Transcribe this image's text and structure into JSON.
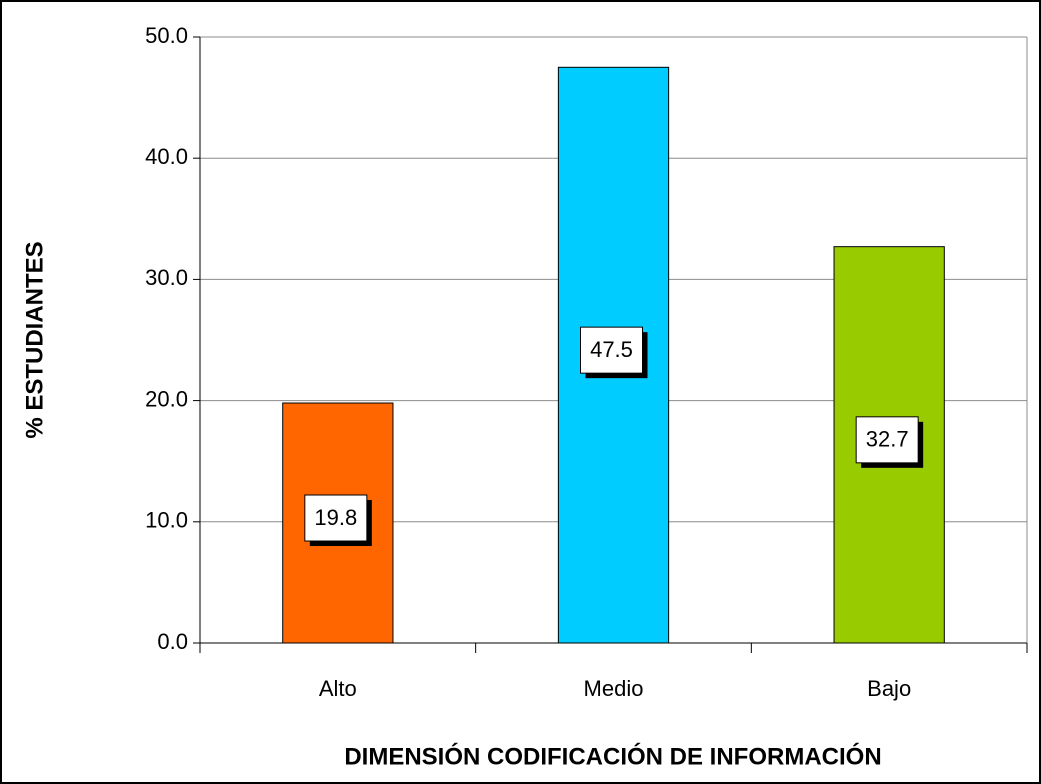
{
  "chart_data": {
    "type": "bar",
    "x_label": "DIMENSIÓN CODIFICACIÓN DE INFORMACIÓN",
    "y_label": "% ESTUDIANTES",
    "categories": [
      "Alto",
      "Medio",
      "Bajo"
    ],
    "values": [
      19.8,
      47.5,
      32.7
    ],
    "colors": [
      "#ff6600",
      "#00ccff",
      "#99cc00"
    ],
    "ylim": [
      0,
      50
    ],
    "yticks": [
      {
        "value": 0,
        "label": "0.0"
      },
      {
        "value": 10,
        "label": "10.0"
      },
      {
        "value": 20,
        "label": "20.0"
      },
      {
        "value": 30,
        "label": "30.0"
      },
      {
        "value": 40,
        "label": "40.0"
      },
      {
        "value": 50,
        "label": "50.0"
      }
    ],
    "grid": true
  }
}
